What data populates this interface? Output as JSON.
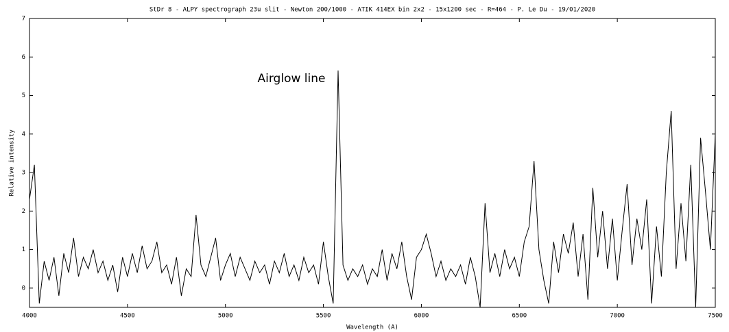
{
  "chart_data": {
    "type": "line",
    "title": "StDr 8 - ALPY spectrograph 23u slit - Newton 200/1000 - ATIK 414EX bin 2x2 - 15x1200 sec - R=464 - P. Le Du - 19/01/2020",
    "x_label": "Wavelength (A)",
    "y_label": "Relative intensity",
    "annotation": "Airglow line",
    "x": [
      4000,
      4025,
      4050,
      4075,
      4100,
      4125,
      4150,
      4175,
      4200,
      4225,
      4250,
      4275,
      4300,
      4325,
      4350,
      4375,
      4400,
      4425,
      4450,
      4475,
      4500,
      4525,
      4550,
      4575,
      4600,
      4625,
      4650,
      4675,
      4700,
      4725,
      4750,
      4775,
      4800,
      4825,
      4850,
      4875,
      4900,
      4925,
      4950,
      4975,
      5000,
      5025,
      5050,
      5075,
      5100,
      5125,
      5150,
      5175,
      5200,
      5225,
      5250,
      5275,
      5300,
      5325,
      5350,
      5375,
      5400,
      5425,
      5450,
      5475,
      5500,
      5525,
      5550,
      5575,
      5600,
      5625,
      5650,
      5675,
      5700,
      5725,
      5750,
      5775,
      5800,
      5825,
      5850,
      5875,
      5900,
      5925,
      5950,
      5975,
      6000,
      6025,
      6050,
      6075,
      6100,
      6125,
      6150,
      6175,
      6200,
      6225,
      6250,
      6275,
      6300,
      6325,
      6350,
      6375,
      6400,
      6425,
      6450,
      6475,
      6500,
      6525,
      6550,
      6575,
      6600,
      6625,
      6650,
      6675,
      6700,
      6725,
      6750,
      6775,
      6800,
      6825,
      6850,
      6875,
      6900,
      6925,
      6950,
      6975,
      7000,
      7025,
      7050,
      7075,
      7100,
      7125,
      7150,
      7175,
      7200,
      7225,
      7250,
      7275,
      7300,
      7325,
      7350,
      7375,
      7400,
      7425,
      7450,
      7475,
      7500
    ],
    "series": [
      {
        "name": "spectrum",
        "color": "#000000",
        "values": [
          2.3,
          3.2,
          -0.4,
          0.7,
          0.2,
          0.8,
          -0.2,
          0.9,
          0.4,
          1.3,
          0.3,
          0.8,
          0.5,
          1.0,
          0.4,
          0.7,
          0.2,
          0.6,
          -0.1,
          0.8,
          0.3,
          0.9,
          0.4,
          1.1,
          0.5,
          0.7,
          1.2,
          0.4,
          0.6,
          0.1,
          0.8,
          -0.2,
          0.5,
          0.3,
          1.9,
          0.6,
          0.3,
          0.8,
          1.3,
          0.2,
          0.6,
          0.9,
          0.3,
          0.8,
          0.5,
          0.2,
          0.7,
          0.4,
          0.6,
          0.1,
          0.7,
          0.4,
          0.9,
          0.3,
          0.6,
          0.2,
          0.8,
          0.4,
          0.6,
          0.1,
          1.2,
          0.3,
          -0.4,
          5.65,
          0.6,
          0.2,
          0.5,
          0.3,
          0.6,
          0.1,
          0.5,
          0.3,
          1.0,
          0.2,
          0.9,
          0.5,
          1.2,
          0.3,
          -0.3,
          0.8,
          1.0,
          1.4,
          0.9,
          0.3,
          0.7,
          0.2,
          0.5,
          0.3,
          0.6,
          0.1,
          0.8,
          0.3,
          -0.5,
          2.2,
          0.4,
          0.9,
          0.3,
          1.0,
          0.5,
          0.8,
          0.3,
          1.2,
          1.6,
          3.3,
          1.0,
          0.2,
          -0.4,
          1.2,
          0.4,
          1.4,
          0.9,
          1.7,
          0.3,
          1.4,
          -0.3,
          2.6,
          0.8,
          2.0,
          0.5,
          1.8,
          0.2,
          1.5,
          2.7,
          0.6,
          1.8,
          1.0,
          2.3,
          -0.4,
          1.6,
          0.3,
          3.0,
          4.6,
          0.5,
          2.2,
          0.7,
          3.2,
          -0.5,
          3.9,
          2.5,
          1.0,
          4.0
        ]
      }
    ],
    "xlim": [
      4000,
      7500
    ],
    "xticks": [
      4000,
      4500,
      5000,
      5500,
      6000,
      6500,
      7000,
      7500
    ],
    "ylim": [
      -0.5,
      7
    ],
    "yticks": [
      0,
      1,
      2,
      3,
      4,
      5,
      6,
      7
    ]
  }
}
